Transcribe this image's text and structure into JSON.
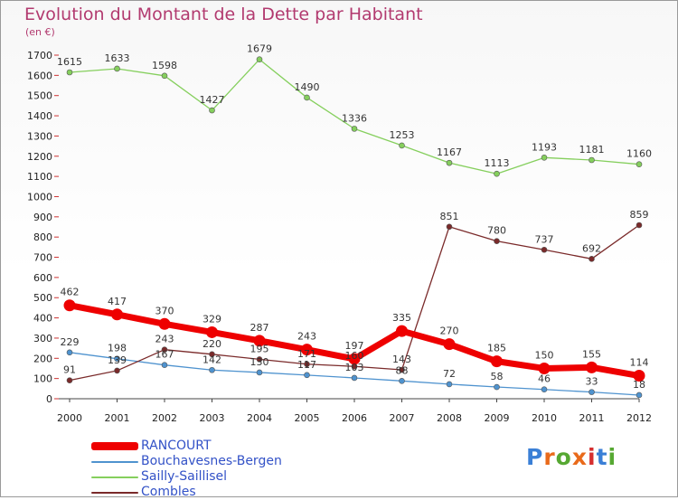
{
  "page": {
    "title": "Evolution du Montant de la Dette par Habitant",
    "unit": "(en €)",
    "logo": "Proxiti",
    "logo_colors": [
      "#3a7fd6",
      "#e96a1a",
      "#56a832",
      "#e96a1a",
      "#d62f2f",
      "#3a7fd6",
      "#56a832"
    ]
  },
  "chart_data": {
    "type": "line",
    "title": "Evolution du Montant de la Dette par Habitant",
    "ylabel": "(en €)",
    "xlabel": "",
    "x": [
      "2000",
      "2001",
      "2002",
      "2003",
      "2004",
      "2005",
      "2006",
      "2007",
      "2008",
      "2009",
      "2010",
      "2011",
      "2012"
    ],
    "ylim": [
      0,
      1700
    ],
    "ytick_step": 100,
    "grid": false,
    "legend_position": "bottom-left",
    "series": [
      {
        "name": "RANCOURT",
        "color": "#ee0000",
        "values": [
          462,
          417,
          370,
          329,
          287,
          243,
          197,
          335,
          270,
          185,
          150,
          155,
          114
        ]
      },
      {
        "name": "Bouchavesnes-Bergen",
        "color": "#4f93cf",
        "values": [
          229,
          198,
          167,
          142,
          130,
          117,
          103,
          88,
          72,
          58,
          46,
          33,
          18
        ]
      },
      {
        "name": "Sailly-Saillisel",
        "color": "#85cf5d",
        "values": [
          1615,
          1633,
          1598,
          1427,
          1679,
          1490,
          1336,
          1253,
          1167,
          1113,
          1193,
          1181,
          1160
        ]
      },
      {
        "name": "Combles",
        "color": "#7a2a2a",
        "values": [
          91,
          139,
          243,
          220,
          195,
          171,
          160,
          143,
          851,
          780,
          737,
          692,
          859
        ]
      }
    ]
  }
}
